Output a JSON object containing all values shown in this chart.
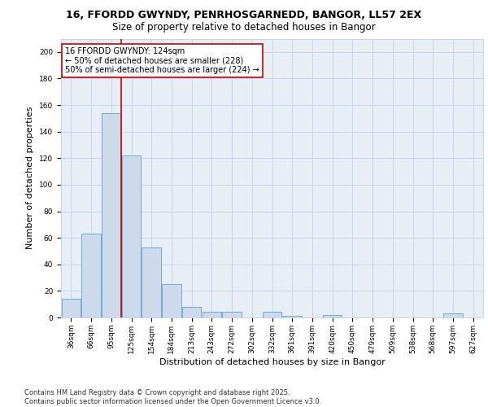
{
  "title_line1": "16, FFORDD GWYNDY, PENRHOSGARNEDD, BANGOR, LL57 2EX",
  "title_line2": "Size of property relative to detached houses in Bangor",
  "xlabel": "Distribution of detached houses by size in Bangor",
  "ylabel": "Number of detached properties",
  "categories": [
    "36sqm",
    "66sqm",
    "95sqm",
    "125sqm",
    "154sqm",
    "184sqm",
    "213sqm",
    "243sqm",
    "272sqm",
    "302sqm",
    "332sqm",
    "361sqm",
    "391sqm",
    "420sqm",
    "450sqm",
    "479sqm",
    "509sqm",
    "538sqm",
    "568sqm",
    "597sqm",
    "627sqm"
  ],
  "values": [
    14,
    63,
    154,
    122,
    53,
    25,
    8,
    4,
    4,
    0,
    4,
    1,
    0,
    2,
    0,
    0,
    0,
    0,
    0,
    3,
    0
  ],
  "bar_color": "#ccdaeb",
  "bar_edge_color": "#6aacd6",
  "annotation_text": "16 FFORDD GWYNDY: 124sqm\n← 50% of detached houses are smaller (228)\n50% of semi-detached houses are larger (224) →",
  "annotation_box_color": "#ffffff",
  "annotation_box_edge_color": "#cc0000",
  "red_line_color": "#cc0000",
  "ylim": [
    0,
    210
  ],
  "yticks": [
    0,
    20,
    40,
    60,
    80,
    100,
    120,
    140,
    160,
    180,
    200
  ],
  "grid_color": "#c8d4e8",
  "background_color": "#e8eef6",
  "footer_text": "Contains HM Land Registry data © Crown copyright and database right 2025.\nContains public sector information licensed under the Open Government Licence v3.0.",
  "title_fontsize": 9,
  "subtitle_fontsize": 8.5,
  "xlabel_fontsize": 8,
  "ylabel_fontsize": 8,
  "tick_fontsize": 6.5,
  "annotation_fontsize": 7,
  "footer_fontsize": 6
}
